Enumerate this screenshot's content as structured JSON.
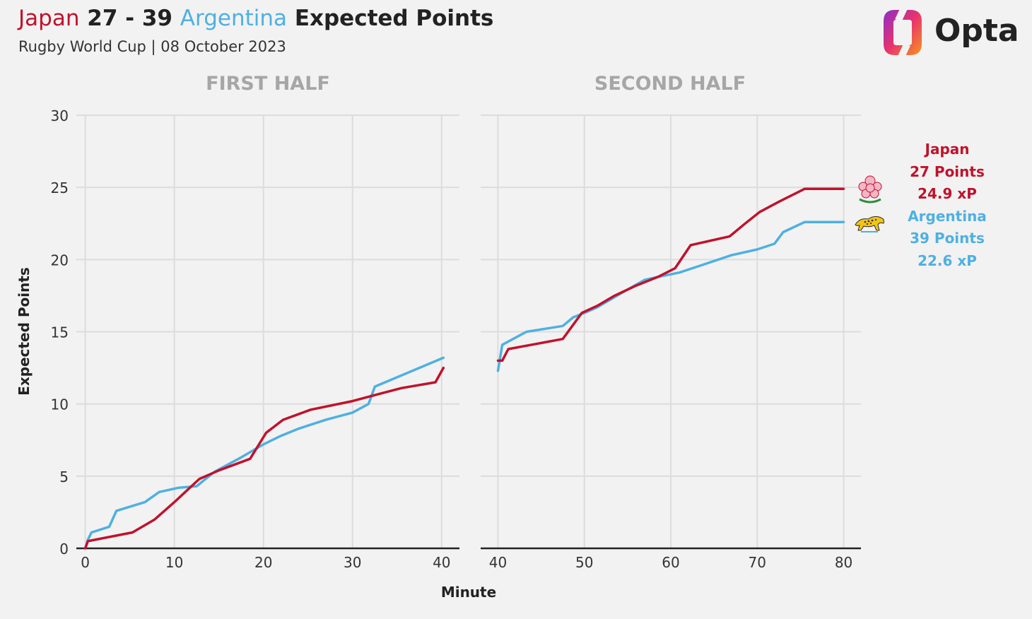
{
  "header": {
    "title_team1": "Japan",
    "title_score": "27 - 39",
    "title_team2": "Argentina",
    "title_suffix": "Expected Points",
    "subtitle": "Rugby World Cup | 08 October 2023",
    "brand": "Opta"
  },
  "legend": {
    "japan_name": "Japan",
    "japan_points": "27 Points",
    "japan_xp": "24.9 xP",
    "argentina_name": "Argentina",
    "argentina_points": "39 Points",
    "argentina_xp": "22.6 xP"
  },
  "colors": {
    "japan": "#c0122c",
    "argentina": "#4fb0e1",
    "grid": "#dcdcdc",
    "axis": "#222222",
    "panel_title": "#a6a6a6"
  },
  "chart_data": [
    {
      "type": "line",
      "panel_title": "FIRST HALF",
      "xlabel": "",
      "ylabel": "Expected Points",
      "xlim": [
        -1,
        42
      ],
      "ylim": [
        0,
        30
      ],
      "x_ticks": [
        "0",
        "10",
        "20",
        "30",
        "40"
      ],
      "y_ticks": [
        "0",
        "5",
        "10",
        "15",
        "20",
        "25",
        "30"
      ],
      "grid": true,
      "series": [
        {
          "name": "Argentina",
          "color": "#4fb0e1",
          "points": [
            [
              0,
              0
            ],
            [
              0.3,
              0.6
            ],
            [
              0.7,
              1.1
            ],
            [
              2.7,
              1.5
            ],
            [
              3.5,
              2.6
            ],
            [
              6.7,
              3.2
            ],
            [
              8.3,
              3.9
            ],
            [
              10.5,
              4.2
            ],
            [
              12.5,
              4.3
            ],
            [
              14.5,
              5.3
            ],
            [
              17.5,
              6.3
            ],
            [
              20,
              7.2
            ],
            [
              22,
              7.8
            ],
            [
              24,
              8.3
            ],
            [
              27,
              8.9
            ],
            [
              30,
              9.4
            ],
            [
              31.8,
              10
            ],
            [
              32.5,
              11.2
            ],
            [
              40.2,
              13.2
            ]
          ]
        },
        {
          "name": "Japan",
          "color": "#c0122c",
          "points": [
            [
              0,
              0
            ],
            [
              0.3,
              0.5
            ],
            [
              5.3,
              1.1
            ],
            [
              7.8,
              2
            ],
            [
              10,
              3.2
            ],
            [
              12.8,
              4.8
            ],
            [
              15,
              5.4
            ],
            [
              18.5,
              6.2
            ],
            [
              20.3,
              8
            ],
            [
              22.2,
              8.9
            ],
            [
              25.3,
              9.6
            ],
            [
              30,
              10.2
            ],
            [
              33,
              10.7
            ],
            [
              35.5,
              11.1
            ],
            [
              39.3,
              11.5
            ],
            [
              40.2,
              12.5
            ]
          ]
        }
      ]
    },
    {
      "type": "line",
      "panel_title": "SECOND HALF",
      "xlabel": "Minute",
      "ylabel": "",
      "xlim": [
        38,
        82
      ],
      "ylim": [
        0,
        30
      ],
      "x_ticks": [
        "40",
        "50",
        "60",
        "70",
        "80"
      ],
      "y_ticks": [
        "0",
        "5",
        "10",
        "15",
        "20",
        "25",
        "30"
      ],
      "grid": true,
      "series": [
        {
          "name": "Argentina",
          "color": "#4fb0e1",
          "points": [
            [
              40,
              12.3
            ],
            [
              40.5,
              14.1
            ],
            [
              43.3,
              15
            ],
            [
              47.5,
              15.4
            ],
            [
              48.7,
              16
            ],
            [
              50,
              16.3
            ],
            [
              51.5,
              16.7
            ],
            [
              53.5,
              17.4
            ],
            [
              55.5,
              18.1
            ],
            [
              57,
              18.6
            ],
            [
              58.5,
              18.8
            ],
            [
              61,
              19.1
            ],
            [
              64,
              19.7
            ],
            [
              67,
              20.3
            ],
            [
              70,
              20.7
            ],
            [
              72,
              21.1
            ],
            [
              73,
              21.9
            ],
            [
              75.5,
              22.6
            ],
            [
              80,
              22.6
            ]
          ]
        },
        {
          "name": "Japan",
          "color": "#c0122c",
          "points": [
            [
              40,
              13
            ],
            [
              40.5,
              13
            ],
            [
              41.2,
              13.8
            ],
            [
              47.5,
              14.5
            ],
            [
              49.7,
              16.3
            ],
            [
              51.5,
              16.8
            ],
            [
              53.5,
              17.5
            ],
            [
              56,
              18.2
            ],
            [
              58.5,
              18.8
            ],
            [
              60.5,
              19.4
            ],
            [
              62.3,
              21
            ],
            [
              66.8,
              21.6
            ],
            [
              68.6,
              22.5
            ],
            [
              70.3,
              23.3
            ],
            [
              72.5,
              24
            ],
            [
              75.5,
              24.9
            ],
            [
              80,
              24.9
            ]
          ]
        }
      ]
    }
  ]
}
